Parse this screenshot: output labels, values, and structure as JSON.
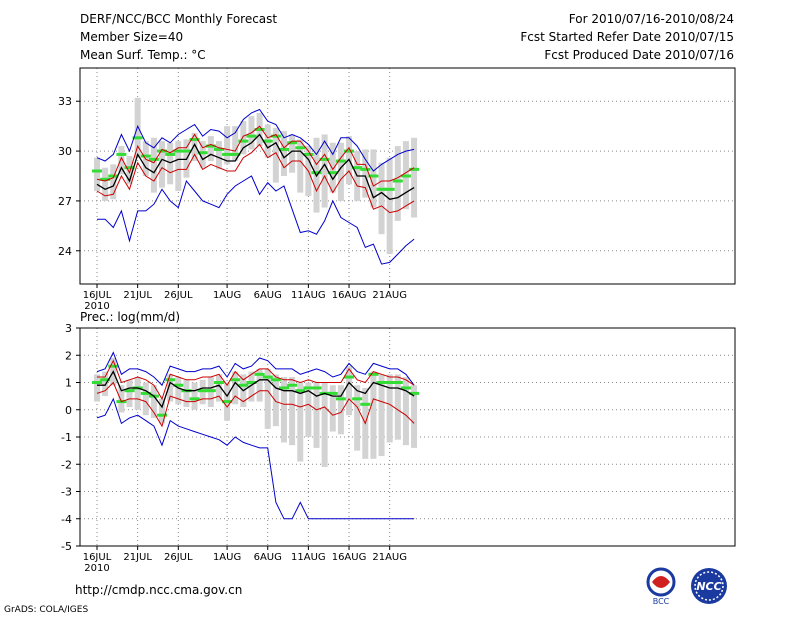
{
  "header": {
    "title": "DERF/NCC/BCC Monthly Forecast",
    "member": "Member Size=40",
    "variable": "Mean Surf. Temp.: °C",
    "period": "For 2010/07/16-2010/08/24",
    "started": "Fcst Started Refer Date 2010/07/15",
    "produced": "Fcst Produced Date 2010/07/16"
  },
  "footer": {
    "url": "http://cmdp.ncc.cma.gov.cn",
    "grads": "GrADS: COLA/IGES",
    "logo_bcc": "BCC",
    "logo_ncc": "NCC"
  },
  "colors": {
    "ensemble_mean": "#000000",
    "spread": "#cc0000",
    "extremes": "#0000cc",
    "members_box": "#d3d3d3",
    "median": "#33dd33",
    "grid": "#888888"
  },
  "chart_data": [
    {
      "type": "line",
      "title": "Mean Surf. Temp.: °C",
      "x_tick_labels": [
        "16JUL",
        "21JUL",
        "26JUL",
        "1AUG",
        "6AUG",
        "11AUG",
        "16AUG",
        "21AUG"
      ],
      "x_tick_days": [
        0,
        5,
        10,
        16,
        21,
        26,
        31,
        36
      ],
      "x_sublabel": "2010",
      "ylim": [
        22,
        35
      ],
      "y_ticks": [
        24,
        27,
        30,
        33
      ],
      "series": [
        {
          "name": "ensemble mean",
          "values": [
            28.0,
            27.7,
            27.9,
            29.0,
            28.2,
            29.8,
            29.0,
            28.7,
            29.5,
            29.3,
            29.5,
            29.5,
            30.4,
            29.5,
            29.8,
            29.6,
            29.4,
            29.4,
            30.2,
            30.5,
            31.0,
            30.2,
            30.5,
            29.6,
            30.0,
            30.0,
            29.5,
            28.5,
            29.2,
            28.3,
            29.0,
            29.5,
            28.5,
            28.5,
            27.2,
            27.5,
            27.1,
            27.2,
            27.5,
            27.8
          ]
        },
        {
          "name": "mean + sd",
          "values": [
            28.3,
            28.2,
            28.4,
            29.6,
            28.7,
            30.3,
            29.5,
            29.3,
            30.1,
            29.9,
            30.2,
            30.2,
            31.0,
            30.2,
            30.4,
            30.2,
            30.1,
            30.0,
            30.9,
            31.1,
            31.5,
            30.8,
            31.0,
            30.2,
            30.6,
            30.6,
            30.0,
            29.2,
            29.8,
            28.9,
            29.6,
            30.2,
            29.2,
            29.2,
            27.9,
            28.2,
            28.2,
            28.4,
            28.7,
            29.0
          ]
        },
        {
          "name": "mean - sd",
          "values": [
            27.6,
            27.3,
            27.4,
            28.5,
            27.7,
            29.3,
            28.5,
            28.2,
            29.0,
            28.7,
            28.9,
            28.9,
            29.8,
            28.9,
            29.2,
            29.0,
            28.8,
            28.8,
            29.6,
            29.9,
            30.4,
            29.6,
            29.9,
            29.0,
            29.4,
            29.4,
            28.8,
            27.6,
            28.5,
            27.5,
            28.3,
            28.8,
            27.9,
            27.8,
            26.5,
            26.7,
            26.3,
            26.4,
            26.7,
            27.0
          ]
        },
        {
          "name": "member max",
          "values": [
            29.6,
            29.4,
            29.8,
            31.0,
            30.0,
            31.5,
            30.5,
            30.2,
            30.8,
            30.5,
            31.0,
            31.3,
            31.6,
            30.9,
            31.3,
            31.2,
            30.8,
            31.1,
            31.9,
            32.3,
            32.5,
            31.8,
            31.6,
            30.8,
            31.0,
            30.8,
            30.4,
            29.8,
            30.6,
            29.8,
            30.8,
            30.8,
            30.3,
            29.5,
            28.8,
            29.2,
            29.5,
            29.8,
            30.0,
            30.1
          ]
        },
        {
          "name": "member min",
          "values": [
            25.9,
            25.9,
            25.4,
            26.4,
            24.6,
            26.4,
            26.4,
            26.8,
            27.7,
            27.0,
            26.6,
            28.2,
            27.6,
            27.0,
            26.8,
            26.6,
            27.4,
            27.9,
            28.2,
            28.5,
            27.4,
            28.1,
            27.6,
            27.9,
            26.5,
            25.1,
            25.2,
            25.0,
            25.8,
            27.0,
            26.0,
            25.7,
            25.4,
            24.2,
            24.4,
            23.2,
            23.3,
            23.8,
            24.3,
            24.7
          ]
        },
        {
          "name": "box median",
          "values": [
            28.8,
            28.3,
            28.5,
            29.8,
            29.0,
            30.8,
            29.7,
            29.5,
            30.0,
            29.8,
            30.0,
            30.0,
            30.7,
            29.9,
            30.3,
            30.1,
            29.8,
            29.8,
            30.6,
            30.9,
            31.3,
            30.6,
            30.9,
            30.1,
            30.5,
            30.2,
            29.8,
            28.7,
            29.5,
            28.7,
            29.4,
            30.0,
            29.0,
            28.9,
            28.5,
            27.7,
            27.7,
            28.2,
            28.5,
            28.9
          ]
        }
      ],
      "boxes": [
        {
          "low": 27.6,
          "high": 29.6
        },
        {
          "low": 27.0,
          "high": 29.0
        },
        {
          "low": 27.1,
          "high": 29.2
        },
        {
          "low": 28.6,
          "high": 30.3
        },
        {
          "low": 28.0,
          "high": 29.7
        },
        {
          "low": 29.6,
          "high": 33.2
        },
        {
          "low": 28.5,
          "high": 30.6
        },
        {
          "low": 27.5,
          "high": 30.8
        },
        {
          "low": 27.8,
          "high": 30.6
        },
        {
          "low": 28.0,
          "high": 30.5
        },
        {
          "low": 27.6,
          "high": 30.6
        },
        {
          "low": 28.4,
          "high": 30.7
        },
        {
          "low": 29.4,
          "high": 31.1
        },
        {
          "low": 29.0,
          "high": 30.6
        },
        {
          "low": 29.4,
          "high": 30.9
        },
        {
          "low": 28.9,
          "high": 30.6
        },
        {
          "low": 29.2,
          "high": 31.5
        },
        {
          "low": 29.4,
          "high": 31.5
        },
        {
          "low": 29.8,
          "high": 31.8
        },
        {
          "low": 30.1,
          "high": 32.1
        },
        {
          "low": 30.3,
          "high": 32.3
        },
        {
          "low": 29.6,
          "high": 31.6
        },
        {
          "low": 28.1,
          "high": 31.4
        },
        {
          "low": 28.5,
          "high": 31.2
        },
        {
          "low": 28.7,
          "high": 31.0
        },
        {
          "low": 27.5,
          "high": 30.7
        },
        {
          "low": 27.3,
          "high": 30.3
        },
        {
          "low": 26.3,
          "high": 30.8
        },
        {
          "low": 26.6,
          "high": 31.0
        },
        {
          "low": 27.5,
          "high": 30.5
        },
        {
          "low": 27.0,
          "high": 30.5
        },
        {
          "low": 28.0,
          "high": 30.9
        },
        {
          "low": 27.0,
          "high": 30.0
        },
        {
          "low": 27.2,
          "high": 30.1
        },
        {
          "low": 26.6,
          "high": 30.1
        },
        {
          "low": 25.0,
          "high": 29.3
        },
        {
          "low": 23.8,
          "high": 29.6
        },
        {
          "low": 25.8,
          "high": 30.3
        },
        {
          "low": 26.5,
          "high": 30.6
        },
        {
          "low": 26.0,
          "high": 30.8
        }
      ]
    },
    {
      "type": "line",
      "title": "Prec.: log(mm/d)",
      "x_tick_labels": [
        "16JUL",
        "21JUL",
        "26JUL",
        "1AUG",
        "6AUG",
        "11AUG",
        "16AUG",
        "21AUG"
      ],
      "x_tick_days": [
        0,
        5,
        10,
        16,
        21,
        26,
        31,
        36
      ],
      "x_sublabel": "2010",
      "ylim": [
        -5,
        3
      ],
      "y_ticks": [
        -5,
        -4,
        -3,
        -2,
        -1,
        0,
        1,
        2,
        3
      ],
      "series": [
        {
          "name": "ensemble mean",
          "values": [
            0.9,
            0.9,
            1.4,
            0.7,
            0.8,
            0.8,
            0.7,
            0.5,
            0.1,
            1.0,
            0.8,
            0.7,
            0.7,
            0.8,
            0.8,
            0.9,
            0.5,
            1.0,
            0.7,
            0.9,
            1.1,
            1.1,
            0.8,
            0.7,
            0.7,
            0.6,
            0.7,
            0.5,
            0.6,
            0.5,
            0.5,
            1.0,
            0.7,
            0.6,
            1.0,
            0.9,
            0.8,
            0.8,
            0.7,
            0.5
          ]
        },
        {
          "name": "mean + sd",
          "values": [
            1.2,
            1.2,
            1.8,
            1.0,
            1.1,
            1.2,
            1.1,
            0.9,
            0.4,
            1.3,
            1.2,
            1.1,
            1.1,
            1.2,
            1.2,
            1.3,
            0.9,
            1.4,
            1.1,
            1.3,
            1.5,
            1.5,
            1.2,
            1.1,
            1.1,
            1.0,
            1.1,
            1.0,
            1.0,
            1.0,
            1.0,
            1.5,
            1.1,
            1.0,
            1.4,
            1.3,
            1.2,
            1.2,
            1.1,
            0.9
          ]
        },
        {
          "name": "mean - sd",
          "values": [
            0.6,
            0.7,
            1.0,
            0.3,
            0.4,
            0.4,
            0.3,
            -0.1,
            -0.6,
            0.5,
            0.4,
            0.3,
            0.3,
            0.4,
            0.4,
            0.5,
            0.1,
            0.5,
            0.3,
            0.5,
            0.7,
            0.7,
            0.3,
            0.2,
            0.2,
            0.1,
            0.2,
            0.0,
            0.1,
            -0.2,
            -0.1,
            0.4,
            0.1,
            -0.5,
            0.4,
            0.3,
            0.2,
            0.0,
            -0.2,
            -0.5
          ]
        },
        {
          "name": "member max",
          "values": [
            1.4,
            1.5,
            2.1,
            1.3,
            1.5,
            1.5,
            1.4,
            1.2,
            0.9,
            1.6,
            1.5,
            1.4,
            1.4,
            1.5,
            1.5,
            1.6,
            1.2,
            1.7,
            1.5,
            1.6,
            1.9,
            1.8,
            1.5,
            1.5,
            1.5,
            1.3,
            1.4,
            1.5,
            1.4,
            1.2,
            1.3,
            1.7,
            1.4,
            1.3,
            1.7,
            1.6,
            1.5,
            1.5,
            1.3,
            0.9
          ]
        },
        {
          "name": "member min",
          "values": [
            -0.3,
            -0.2,
            0.4,
            -0.5,
            -0.3,
            -0.2,
            -0.4,
            -0.6,
            -1.3,
            -0.4,
            -0.6,
            -0.7,
            -0.8,
            -0.9,
            -1.0,
            -1.1,
            -1.3,
            -1.0,
            -1.2,
            -1.3,
            -1.4,
            -1.4,
            -3.4,
            -4.0,
            -4.0,
            -3.4,
            -4.0,
            -4.0,
            -4.0,
            -4.0,
            -4.0,
            -4.0,
            -4.0,
            -4.0,
            -4.0,
            -4.0,
            -4.0,
            -4.0,
            -4.0,
            -4.0
          ]
        },
        {
          "name": "box median",
          "values": [
            1.0,
            1.1,
            1.6,
            0.3,
            0.7,
            0.8,
            0.6,
            0.5,
            -0.2,
            1.1,
            0.9,
            0.7,
            0.4,
            0.7,
            0.7,
            1.0,
            0.3,
            1.1,
            0.9,
            1.0,
            1.3,
            1.2,
            1.1,
            0.8,
            0.9,
            0.7,
            0.8,
            0.8,
            0.6,
            0.6,
            0.4,
            1.2,
            0.4,
            0.2,
            1.3,
            1.0,
            1.0,
            1.0,
            0.8,
            0.6
          ]
        }
      ],
      "boxes": [
        {
          "low": 0.3,
          "high": 1.3
        },
        {
          "low": 0.5,
          "high": 1.4
        },
        {
          "low": 0.9,
          "high": 1.9
        },
        {
          "low": -0.1,
          "high": 0.9
        },
        {
          "low": 0.1,
          "high": 1.1
        },
        {
          "low": 0.0,
          "high": 1.2
        },
        {
          "low": -0.2,
          "high": 1.0
        },
        {
          "low": -0.3,
          "high": 0.9
        },
        {
          "low": -0.5,
          "high": 0.4
        },
        {
          "low": 0.3,
          "high": 1.3
        },
        {
          "low": 0.2,
          "high": 1.2
        },
        {
          "low": 0.1,
          "high": 1.1
        },
        {
          "low": 0.0,
          "high": 1.0
        },
        {
          "low": 0.2,
          "high": 1.1
        },
        {
          "low": 0.1,
          "high": 1.2
        },
        {
          "low": 0.3,
          "high": 1.3
        },
        {
          "low": -0.4,
          "high": 1.0
        },
        {
          "low": 0.2,
          "high": 1.4
        },
        {
          "low": 0.1,
          "high": 1.3
        },
        {
          "low": 0.3,
          "high": 1.4
        },
        {
          "low": 0.3,
          "high": 1.5
        },
        {
          "low": -0.7,
          "high": 1.5
        },
        {
          "low": -0.6,
          "high": 1.3
        },
        {
          "low": -1.2,
          "high": 1.2
        },
        {
          "low": -1.3,
          "high": 1.2
        },
        {
          "low": -1.9,
          "high": 1.0
        },
        {
          "low": -1.0,
          "high": 1.0
        },
        {
          "low": -1.4,
          "high": 1.0
        },
        {
          "low": -2.1,
          "high": 1.0
        },
        {
          "low": -0.8,
          "high": 0.9
        },
        {
          "low": -0.9,
          "high": 0.9
        },
        {
          "low": -0.2,
          "high": 1.6
        },
        {
          "low": -1.5,
          "high": 0.9
        },
        {
          "low": -1.8,
          "high": 0.8
        },
        {
          "low": -1.8,
          "high": 1.4
        },
        {
          "low": -1.7,
          "high": 1.3
        },
        {
          "low": -1.2,
          "high": 1.3
        },
        {
          "low": -1.1,
          "high": 1.3
        },
        {
          "low": -1.3,
          "high": 1.2
        },
        {
          "low": -1.4,
          "high": 0.9
        }
      ]
    }
  ]
}
